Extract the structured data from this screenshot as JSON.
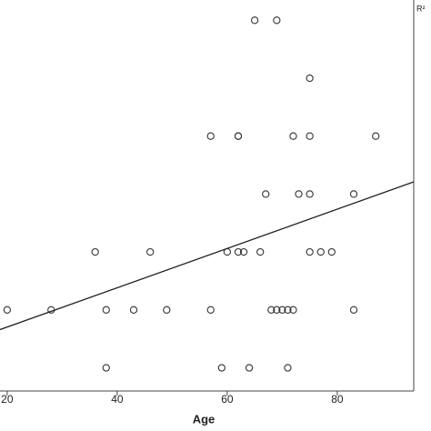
{
  "chart_data": {
    "type": "scatter",
    "x_label": "Age",
    "annotation": "R²",
    "xlim": [
      18.7,
      93.9
    ],
    "ylim": [
      0.6,
      7.35
    ],
    "xticks": [
      20,
      40,
      60,
      80
    ],
    "series": [
      {
        "color": "#333333",
        "x": [
          65,
          69,
          75,
          57,
          62,
          62,
          72,
          75,
          87,
          67,
          73,
          75,
          83,
          36,
          46,
          60,
          62,
          63,
          66,
          75,
          77,
          79,
          20,
          28,
          38,
          43,
          49,
          57,
          68,
          69,
          70,
          71,
          72,
          83,
          38,
          59,
          64,
          71
        ],
        "values": [
          7,
          7,
          6,
          5,
          5,
          5,
          5,
          5,
          5,
          4,
          4,
          4,
          4,
          3,
          3,
          3,
          3,
          3,
          3,
          3,
          3,
          3,
          2,
          2,
          2,
          2,
          2,
          2,
          2,
          2,
          2,
          2,
          2,
          2,
          1,
          1,
          1,
          1
        ]
      }
    ],
    "fit_line": {
      "color": "#222222",
      "x": [
        18.7,
        93.9
      ],
      "values": [
        1.66,
        4.21
      ]
    }
  }
}
